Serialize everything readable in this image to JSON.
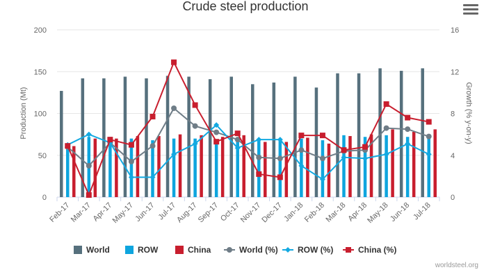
{
  "chart_data": {
    "type": "bar",
    "title": "Crude steel production",
    "categories": [
      "Feb-17",
      "Mar-17",
      "Apr-17",
      "May-17",
      "Jun-17",
      "Jul-17",
      "Aug-17",
      "Sep-17",
      "Oct-17",
      "Nov-17",
      "Dec-17",
      "Jan-18",
      "Feb-18",
      "Mar-18",
      "Apr-18",
      "May-18",
      "Jun-18",
      "Jul-18"
    ],
    "ylabel": "Production (Mt)",
    "y2label": "Growth (% y-on-y)",
    "ylim": [
      0,
      200
    ],
    "y2lim": [
      0,
      16
    ],
    "yticks": [
      "0",
      "50",
      "100",
      "150",
      "200"
    ],
    "y2ticks": [
      "0",
      "4",
      "8",
      "12",
      "16"
    ],
    "grid": true,
    "legend_position": "bottom",
    "series": [
      {
        "name": "World",
        "type": "bar",
        "axis": "left",
        "color": "#56707d",
        "values": [
          127,
          142,
          142,
          144,
          142,
          145,
          144,
          141,
          144,
          135,
          137,
          144,
          131,
          148,
          148,
          154,
          151,
          154
        ]
      },
      {
        "name": "ROW",
        "type": "bar",
        "axis": "left",
        "color": "#0ea5de",
        "values": [
          63,
          72,
          72,
          70,
          68,
          70,
          70,
          68,
          70,
          68,
          70,
          70,
          68,
          74,
          72,
          74,
          72,
          74
        ]
      },
      {
        "name": "China",
        "type": "bar",
        "axis": "left",
        "color": "#c81e2e",
        "values": [
          61,
          70,
          70,
          73,
          73,
          75,
          74,
          72,
          74,
          66,
          66,
          71,
          64,
          73,
          75,
          81,
          78,
          81
        ]
      },
      {
        "name": "World (%)",
        "type": "line",
        "axis": "right",
        "color": "#6f7d87",
        "marker": "circle",
        "values": [
          4.8,
          3.0,
          5.2,
          3.4,
          4.9,
          8.5,
          6.8,
          6.2,
          5.5,
          3.8,
          3.7,
          4.5,
          3.7,
          4.4,
          4.5,
          6.6,
          6.5,
          5.8
        ]
      },
      {
        "name": "ROW (%)",
        "type": "line",
        "axis": "right",
        "color": "#13a9e1",
        "marker": "diamond",
        "values": [
          5.0,
          6.0,
          5.2,
          1.9,
          1.9,
          4.1,
          5.1,
          6.9,
          4.7,
          5.5,
          5.5,
          3.0,
          1.7,
          3.8,
          3.7,
          4.1,
          5.1,
          4.1
        ]
      },
      {
        "name": "China (%)",
        "type": "line",
        "axis": "right",
        "color": "#c81e2e",
        "marker": "square",
        "values": [
          4.9,
          0.2,
          5.5,
          5.0,
          7.7,
          12.9,
          8.8,
          5.3,
          6.1,
          2.2,
          1.9,
          5.9,
          5.9,
          4.5,
          4.8,
          8.9,
          7.6,
          7.2
        ]
      }
    ]
  },
  "menu_icon": "hamburger-menu-icon",
  "credit": "worldsteel.org"
}
